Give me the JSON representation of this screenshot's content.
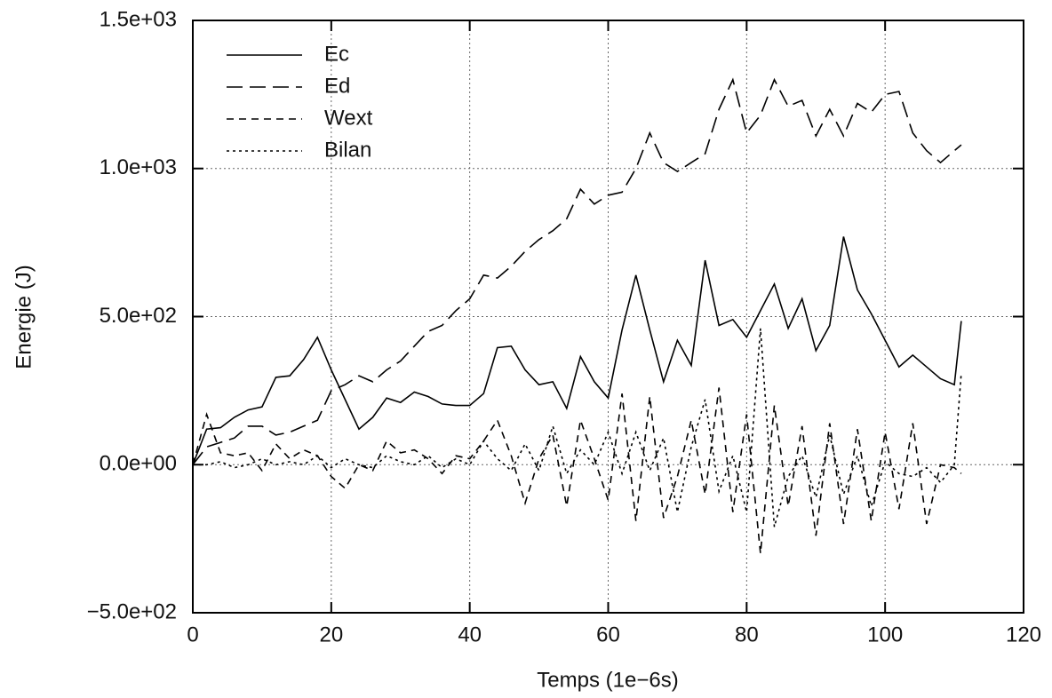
{
  "chart_data": {
    "type": "line",
    "xlabel": "Temps (1e−6s)",
    "ylabel": "Energie (J)",
    "x": [
      0,
      2,
      4,
      6,
      8,
      10,
      12,
      14,
      16,
      18,
      20,
      22,
      24,
      26,
      28,
      30,
      32,
      34,
      36,
      38,
      40,
      42,
      44,
      46,
      48,
      50,
      52,
      54,
      56,
      58,
      60,
      62,
      64,
      66,
      68,
      70,
      72,
      74,
      76,
      78,
      80,
      82,
      84,
      86,
      88,
      90,
      92,
      94,
      96,
      98,
      100,
      102,
      104,
      106,
      108,
      110,
      111
    ],
    "series": [
      {
        "name": "Ec",
        "color": "#000000",
        "style": "solid",
        "values": [
          0,
          120,
          125,
          160,
          185,
          195,
          295,
          300,
          355,
          430,
          320,
          220,
          120,
          160,
          225,
          210,
          245,
          230,
          205,
          200,
          200,
          240,
          395,
          400,
          320,
          270,
          280,
          190,
          365,
          280,
          225,
          455,
          640,
          455,
          280,
          420,
          335,
          690,
          470,
          490,
          430,
          520,
          610,
          460,
          560,
          385,
          470,
          770,
          590,
          510,
          420,
          330,
          370,
          330,
          290,
          270,
          485
        ]
      },
      {
        "name": "Ed",
        "color": "#000000",
        "style": "dashed",
        "values": [
          0,
          60,
          75,
          90,
          130,
          130,
          100,
          110,
          130,
          150,
          250,
          270,
          300,
          280,
          320,
          350,
          400,
          450,
          470,
          520,
          560,
          640,
          630,
          670,
          720,
          760,
          790,
          830,
          930,
          880,
          910,
          920,
          1000,
          1120,
          1020,
          990,
          1020,
          1050,
          1200,
          1300,
          1120,
          1180,
          1300,
          1210,
          1230,
          1110,
          1200,
          1110,
          1220,
          1190,
          1250,
          1260,
          1120,
          1060,
          1020,
          1060,
          1080
        ]
      },
      {
        "name": "Wext",
        "color": "#000000",
        "style": "short-dashed",
        "values": [
          0,
          170,
          40,
          30,
          40,
          -20,
          70,
          20,
          50,
          30,
          -40,
          -80,
          0,
          -20,
          80,
          40,
          50,
          20,
          -30,
          30,
          20,
          80,
          150,
          30,
          -130,
          20,
          100,
          -140,
          150,
          20,
          -120,
          240,
          -190,
          230,
          -180,
          -40,
          150,
          -100,
          260,
          -160,
          170,
          -300,
          200,
          -140,
          130,
          -240,
          140,
          -200,
          120,
          -190,
          110,
          -150,
          140,
          -200,
          0,
          -10,
          -30
        ]
      },
      {
        "name": "Bilan",
        "color": "#000000",
        "style": "dotted",
        "values": [
          0,
          0,
          10,
          -10,
          0,
          20,
          0,
          10,
          0,
          30,
          -10,
          20,
          0,
          -10,
          30,
          10,
          0,
          30,
          -10,
          20,
          0,
          80,
          20,
          -20,
          70,
          -20,
          130,
          -30,
          50,
          0,
          110,
          -30,
          110,
          -20,
          90,
          -160,
          60,
          220,
          -90,
          30,
          -160,
          460,
          -210,
          -40,
          30,
          -110,
          100,
          -100,
          30,
          -140,
          10,
          -30,
          -40,
          -10,
          -60,
          0,
          310
        ]
      }
    ],
    "xlim": [
      0,
      120
    ],
    "xticks": [
      0,
      20,
      40,
      60,
      80,
      100,
      120
    ],
    "ylim": [
      -500,
      1500
    ],
    "yticks": [
      {
        "value": -500,
        "label": "−5.0e+02"
      },
      {
        "value": 0,
        "label": "0.0e+00"
      },
      {
        "value": 500,
        "label": "5.0e+02"
      },
      {
        "value": 1000,
        "label": "1.0e+03"
      },
      {
        "value": 1500,
        "label": "1.5e+03"
      }
    ],
    "grid": true,
    "legend": "upper-left"
  }
}
